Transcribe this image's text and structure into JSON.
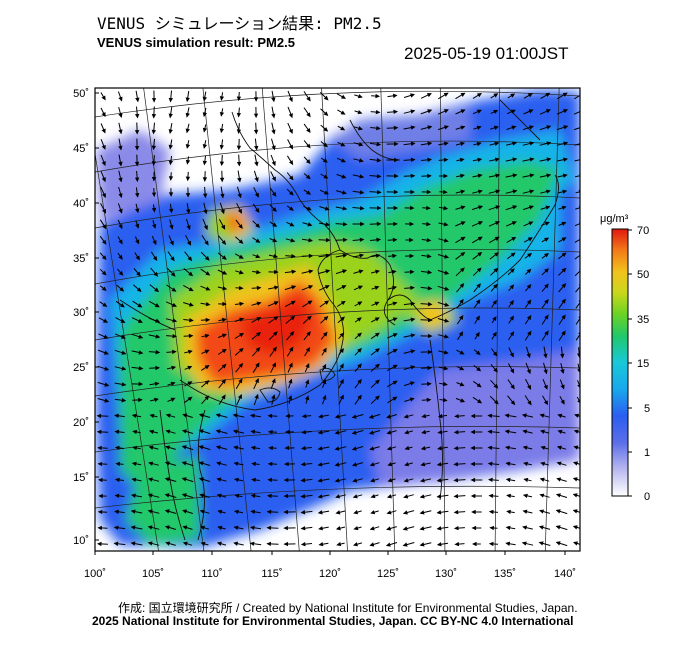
{
  "title_jp": "VENUS シミュレーション結果: PM2.5",
  "title_en": "VENUS simulation result: PM2.5",
  "timestamp": "2025-05-19 01:00JST",
  "lat_ticks": [
    "50˚",
    "45˚",
    "40˚",
    "35˚",
    "30˚",
    "25˚",
    "20˚",
    "15˚",
    "10˚"
  ],
  "lon_ticks": [
    "100˚",
    "105˚",
    "110˚",
    "115˚",
    "120˚",
    "125˚",
    "130˚",
    "135˚",
    "140˚"
  ],
  "colorbar": {
    "unit": "μg/m³",
    "labels": [
      "70",
      "50",
      "35",
      "15",
      "5",
      "1",
      "0"
    ]
  },
  "footer": {
    "credit": "作成: 国立環境研究所 / Created by National Institute for Environmental Studies, Japan.",
    "license": "2025 National Institute for Environmental Studies, Japan. CC BY-NC 4.0 International"
  },
  "colors": {
    "very_low": "#7b7be8",
    "low": "#2a5ef0",
    "low_mid": "#19b4e8",
    "mid": "#21c86a",
    "mid_high": "#9ad21c",
    "high": "#f2c21c",
    "very_high": "#f24a16"
  }
}
